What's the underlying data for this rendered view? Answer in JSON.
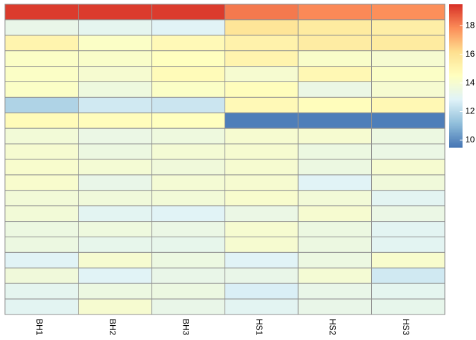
{
  "chart_data": {
    "type": "heatmap",
    "columns": [
      "BH1",
      "BH2",
      "BH3",
      "HS1",
      "HS2",
      "HS3"
    ],
    "values": [
      [
        19.3,
        19.3,
        19.3,
        18.2,
        17.9,
        17.8
      ],
      [
        13.3,
        13.1,
        12.9,
        15.9,
        15.6,
        15.4
      ],
      [
        15.1,
        14.3,
        14.8,
        15.2,
        15.5,
        15.6
      ],
      [
        14.3,
        14.2,
        14.5,
        15.1,
        14.2,
        14.0
      ],
      [
        14.3,
        14.0,
        14.7,
        14.0,
        14.9,
        14.3
      ],
      [
        14.3,
        13.6,
        14.3,
        14.6,
        13.4,
        14.0
      ],
      [
        11.8,
        12.5,
        12.4,
        14.8,
        14.6,
        14.9
      ],
      [
        14.7,
        14.6,
        14.5,
        9.7,
        9.7,
        9.7
      ],
      [
        13.8,
        13.4,
        13.6,
        14.0,
        14.0,
        13.5
      ],
      [
        14.0,
        13.5,
        13.9,
        14.0,
        13.5,
        13.4
      ],
      [
        14.1,
        13.9,
        13.7,
        14.0,
        13.5,
        14.0
      ],
      [
        14.1,
        13.3,
        13.9,
        14.0,
        12.9,
        13.7
      ],
      [
        13.8,
        13.7,
        13.8,
        14.1,
        13.8,
        13.0
      ],
      [
        13.8,
        13.0,
        12.9,
        13.4,
        14.0,
        13.4
      ],
      [
        13.5,
        13.6,
        13.4,
        14.0,
        13.5,
        13.0
      ],
      [
        13.5,
        13.2,
        13.2,
        14.0,
        13.5,
        13.0
      ],
      [
        12.9,
        14.0,
        13.5,
        12.9,
        13.5,
        14.1
      ],
      [
        13.7,
        12.9,
        13.3,
        13.3,
        13.9,
        12.5
      ],
      [
        13.1,
        13.5,
        13.5,
        12.7,
        13.3,
        13.1
      ],
      [
        13.0,
        14.0,
        13.3,
        13.0,
        13.3,
        13.2
      ]
    ],
    "scale": {
      "min": 9.5,
      "max": 19.5,
      "ticks": [
        10,
        12,
        14,
        16,
        18
      ],
      "palette": [
        "#4575b4",
        "#91bfdb",
        "#e0f3f8",
        "#ffffbf",
        "#fee090",
        "#fc8d59",
        "#d73027"
      ]
    },
    "grid_color": "#909090"
  }
}
